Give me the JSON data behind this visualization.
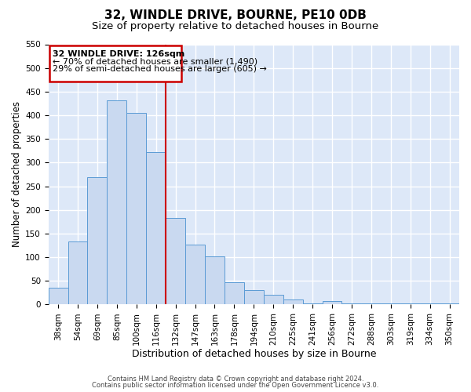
{
  "title": "32, WINDLE DRIVE, BOURNE, PE10 0DB",
  "subtitle": "Size of property relative to detached houses in Bourne",
  "xlabel": "Distribution of detached houses by size in Bourne",
  "ylabel": "Number of detached properties",
  "bar_labels": [
    "38sqm",
    "54sqm",
    "69sqm",
    "85sqm",
    "100sqm",
    "116sqm",
    "132sqm",
    "147sqm",
    "163sqm",
    "178sqm",
    "194sqm",
    "210sqm",
    "225sqm",
    "241sqm",
    "256sqm",
    "272sqm",
    "288sqm",
    "303sqm",
    "319sqm",
    "334sqm",
    "350sqm"
  ],
  "bar_values": [
    35,
    133,
    270,
    432,
    405,
    322,
    183,
    127,
    102,
    47,
    30,
    20,
    10,
    3,
    7,
    3,
    3,
    2,
    3,
    2,
    3
  ],
  "bar_color": "#c9d9f0",
  "bar_edge_color": "#5b9bd5",
  "bar_width": 1.0,
  "ylim": [
    0,
    550
  ],
  "yticks": [
    0,
    50,
    100,
    150,
    200,
    250,
    300,
    350,
    400,
    450,
    500,
    550
  ],
  "property_label": "32 WINDLE DRIVE: 126sqm",
  "annotation_line1": "← 70% of detached houses are smaller (1,490)",
  "annotation_line2": "29% of semi-detached houses are larger (605) →",
  "annotation_box_color": "#cc0000",
  "vline_color": "#cc0000",
  "vline_x_index": 6,
  "footer_line1": "Contains HM Land Registry data © Crown copyright and database right 2024.",
  "footer_line2": "Contains public sector information licensed under the Open Government Licence v3.0.",
  "fig_facecolor": "#ffffff",
  "ax_facecolor": "#dde8f8",
  "grid_color": "#ffffff",
  "title_fontsize": 11,
  "subtitle_fontsize": 9.5,
  "xlabel_fontsize": 9,
  "ylabel_fontsize": 8.5,
  "tick_fontsize": 7.5,
  "annotation_fontsize": 8,
  "footer_fontsize": 6
}
